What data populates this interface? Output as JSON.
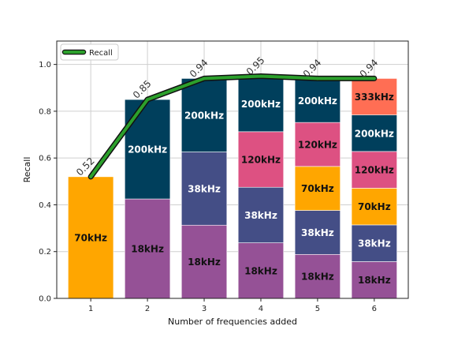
{
  "chart_data": {
    "type": "bar",
    "subtype": "stacked-bar-with-line",
    "xlabel": "Number of frequencies added",
    "ylabel": "Recall",
    "ylim": [
      0,
      1.1
    ],
    "yticks": [
      "0.0",
      "0.2",
      "0.4",
      "0.6",
      "0.8",
      "1.0"
    ],
    "categories": [
      "1",
      "2",
      "3",
      "4",
      "5",
      "6"
    ],
    "grid": true,
    "legend": {
      "placement": "top-left",
      "entries": [
        "Recall"
      ]
    },
    "colors": {
      "18kHz": "#955196",
      "38kHz": "#444e86",
      "70kHz": "#ffa600",
      "120kHz": "#dd5182",
      "200kHz": "#003f5c",
      "333kHz": "#ff6e54",
      "recall_line": "#2ca02c"
    },
    "stacks": [
      [
        {
          "label": "70kHz",
          "value": 0.52
        }
      ],
      [
        {
          "label": "18kHz",
          "value": 0.425
        },
        {
          "label": "200kHz",
          "value": 0.425
        }
      ],
      [
        {
          "label": "18kHz",
          "value": 0.313
        },
        {
          "label": "38kHz",
          "value": 0.313
        },
        {
          "label": "200kHz",
          "value": 0.314
        }
      ],
      [
        {
          "label": "18kHz",
          "value": 0.2375
        },
        {
          "label": "38kHz",
          "value": 0.2375
        },
        {
          "label": "120kHz",
          "value": 0.2375
        },
        {
          "label": "200kHz",
          "value": 0.2375
        }
      ],
      [
        {
          "label": "18kHz",
          "value": 0.188
        },
        {
          "label": "38kHz",
          "value": 0.188
        },
        {
          "label": "70kHz",
          "value": 0.188
        },
        {
          "label": "120kHz",
          "value": 0.188
        },
        {
          "label": "200kHz",
          "value": 0.188
        }
      ],
      [
        {
          "label": "18kHz",
          "value": 0.157
        },
        {
          "label": "38kHz",
          "value": 0.157
        },
        {
          "label": "70kHz",
          "value": 0.157
        },
        {
          "label": "120kHz",
          "value": 0.157
        },
        {
          "label": "200kHz",
          "value": 0.156
        },
        {
          "label": "333kHz",
          "value": 0.156
        }
      ]
    ],
    "series": [
      {
        "name": "Recall",
        "values": [
          0.52,
          0.85,
          0.94,
          0.95,
          0.94,
          0.94
        ],
        "labels": [
          "0.52",
          "0.85",
          "0.94",
          "0.95",
          "0.94",
          "0.94"
        ]
      }
    ]
  }
}
